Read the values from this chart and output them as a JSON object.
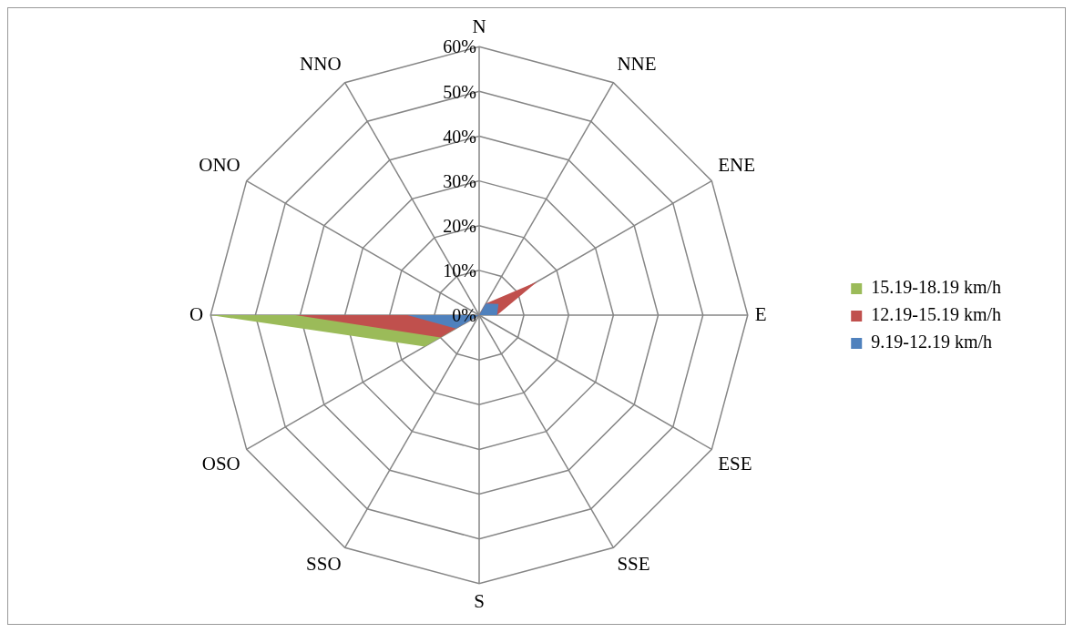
{
  "chart_data": {
    "type": "radar",
    "categories": [
      "N",
      "NNE",
      "ENE",
      "E",
      "ESE",
      "SSE",
      "S",
      "SSO",
      "OSO",
      "O",
      "ONO",
      "NNO"
    ],
    "series": [
      {
        "name": "15.19-18.19 km/h",
        "color": "#9bbb59",
        "values": [
          3,
          0,
          0,
          0,
          0,
          0,
          0,
          0,
          14,
          60,
          0,
          0
        ]
      },
      {
        "name": "12.19-15.19 km/h",
        "color": "#c0504d",
        "values": [
          0,
          3,
          15,
          4,
          0,
          0,
          0,
          0,
          10,
          41,
          0,
          0
        ]
      },
      {
        "name": "9.19-12.19 km/h",
        "color": "#4f81bd",
        "values": [
          0,
          3,
          5,
          4,
          0,
          0,
          0,
          0,
          6,
          16,
          0,
          0
        ]
      }
    ],
    "ylim": [
      0,
      60
    ],
    "yticks": [
      {
        "value": 0,
        "label": "0%"
      },
      {
        "value": 10,
        "label": "10%"
      },
      {
        "value": 20,
        "label": "20%"
      },
      {
        "value": 30,
        "label": "30%"
      },
      {
        "value": 40,
        "label": "40%"
      },
      {
        "value": 50,
        "label": "50%"
      },
      {
        "value": 60,
        "label": "60%"
      }
    ],
    "grid": true,
    "legend": "right"
  }
}
